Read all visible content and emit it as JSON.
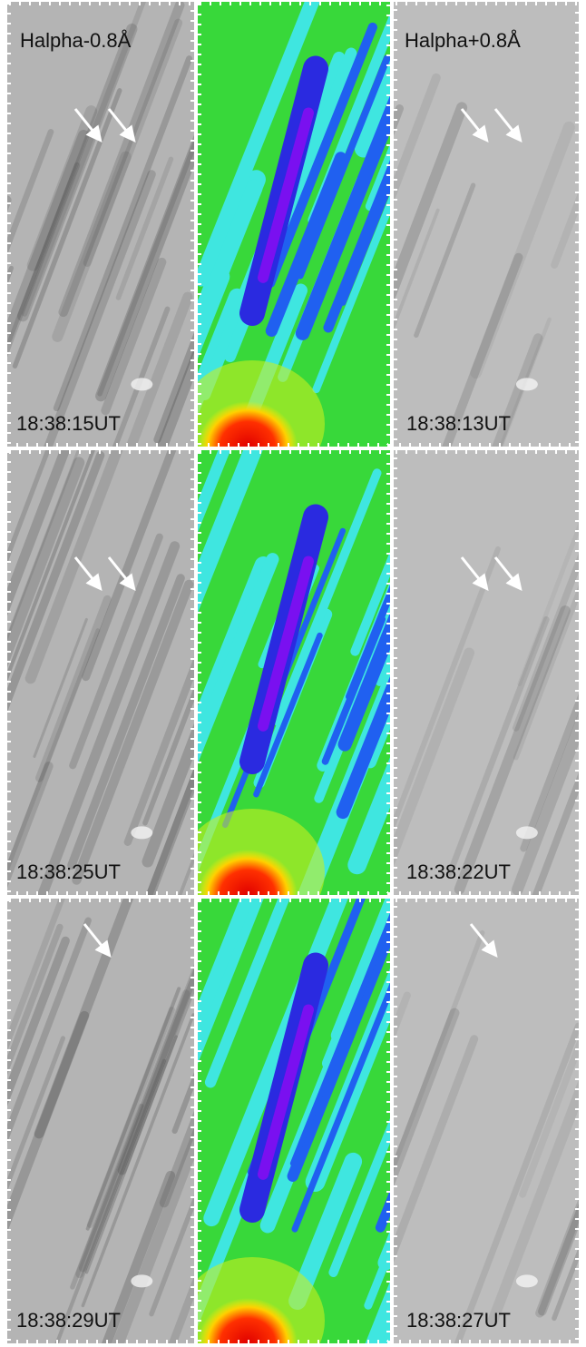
{
  "header": {
    "left_label": "Halpha-0.8Å",
    "right_label": "Halpha+0.8Å"
  },
  "rows": [
    {
      "left_time": "18:38:15UT",
      "right_time": "18:38:13UT"
    },
    {
      "left_time": "18:38:25UT",
      "right_time": "18:38:22UT"
    },
    {
      "left_time": "18:38:29UT",
      "right_time": "18:38:27UT"
    }
  ]
}
